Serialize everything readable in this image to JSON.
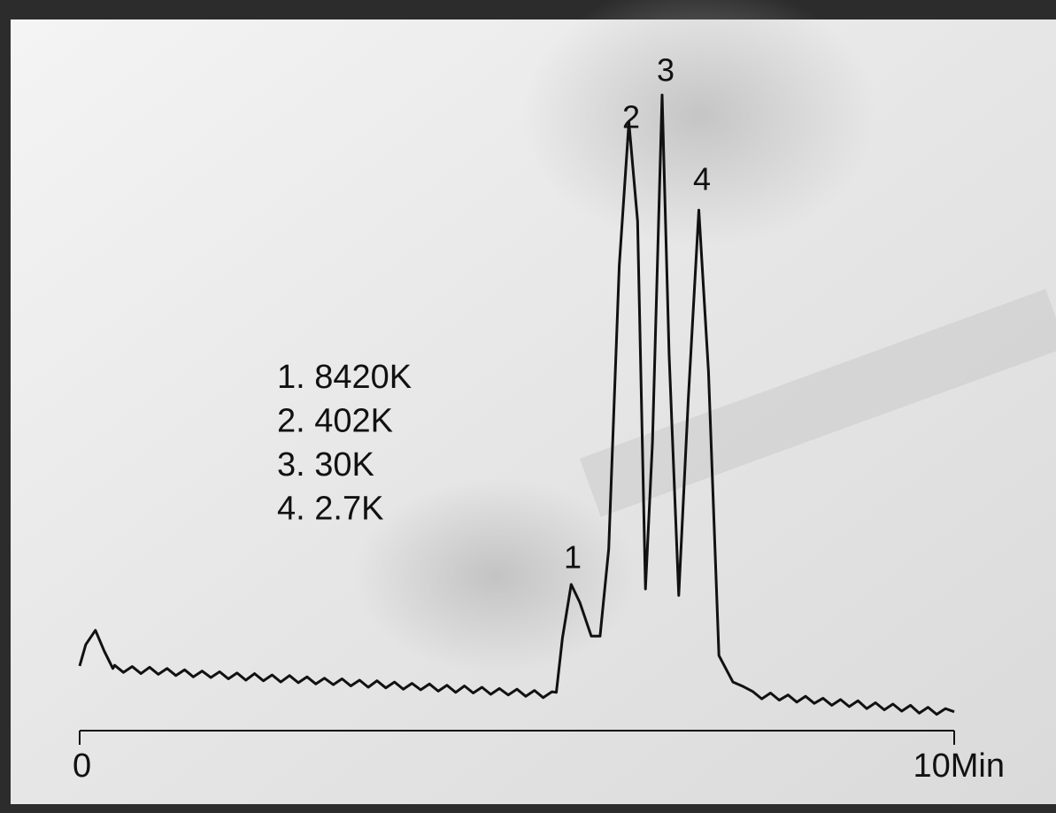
{
  "chart_data": {
    "type": "line",
    "x": [
      0,
      0.07,
      0.18,
      0.28,
      0.38,
      0.4,
      0.5,
      0.6,
      0.7,
      0.8,
      0.9,
      1.0,
      1.1,
      1.2,
      1.3,
      1.4,
      1.5,
      1.6,
      1.7,
      1.8,
      1.9,
      2.0,
      2.1,
      2.2,
      2.3,
      2.4,
      2.5,
      2.6,
      2.7,
      2.8,
      2.9,
      3.0,
      3.1,
      3.2,
      3.3,
      3.4,
      3.5,
      3.6,
      3.7,
      3.8,
      3.9,
      4.0,
      4.1,
      4.2,
      4.3,
      4.4,
      4.5,
      4.6,
      4.7,
      4.8,
      4.9,
      5.0,
      5.1,
      5.2,
      5.3,
      5.4,
      5.45,
      5.52,
      5.62,
      5.72,
      5.85,
      5.95,
      6.05,
      6.17,
      6.28,
      6.38,
      6.47,
      6.55,
      6.66,
      6.74,
      6.85,
      6.96,
      7.08,
      7.19,
      7.31,
      7.47,
      7.59,
      7.7,
      7.8,
      7.9,
      8.0,
      8.1,
      8.2,
      8.3,
      8.4,
      8.5,
      8.6,
      8.7,
      8.8,
      8.9,
      9.0,
      9.1,
      9.2,
      9.3,
      9.4,
      9.5,
      9.6,
      9.7,
      9.8,
      9.9,
      10.0
    ],
    "series": [
      {
        "color": "#111111",
        "values": [
          10.7,
          14,
          16.2,
          13,
          10.3,
          10.8,
          9.7,
          10.6,
          9.5,
          10.5,
          9.4,
          10.3,
          9.2,
          10.1,
          9.0,
          9.9,
          8.9,
          9.8,
          8.7,
          9.6,
          8.5,
          9.5,
          8.4,
          9.3,
          8.2,
          9.2,
          8.1,
          9.0,
          7.9,
          8.8,
          7.8,
          8.7,
          7.6,
          8.5,
          7.4,
          8.4,
          7.3,
          8.2,
          7.1,
          8.0,
          7.0,
          7.9,
          6.8,
          7.7,
          6.6,
          7.6,
          6.5,
          7.4,
          6.3,
          7.2,
          6.2,
          7.1,
          6.0,
          6.9,
          5.8,
          6.7,
          6.6,
          15,
          23.3,
          20.5,
          15.3,
          15.3,
          28.8,
          72.6,
          94.8,
          79.5,
          22.6,
          45.2,
          99,
          58.9,
          21.6,
          52,
          81.2,
          56.2,
          12.3,
          8.2,
          7.5,
          6.7,
          5.6,
          6.5,
          5.4,
          6.2,
          5.1,
          6.0,
          4.9,
          5.7,
          4.6,
          5.5,
          4.4,
          5.3,
          4.1,
          5.0,
          3.9,
          4.8,
          3.7,
          4.6,
          3.4,
          4.3,
          3.2,
          4.1,
          3.6
        ]
      }
    ],
    "xlim": [
      0,
      10
    ],
    "xticks": [
      0,
      {
        "value": 10,
        "label": "10Min"
      }
    ],
    "ylim": [
      0,
      100
    ],
    "peak_labels": [
      "1",
      "2",
      "3",
      "4"
    ],
    "peak_list": [
      "1. 8420K",
      "2. 402K",
      "3. 30K",
      "4. 2.7K"
    ]
  }
}
